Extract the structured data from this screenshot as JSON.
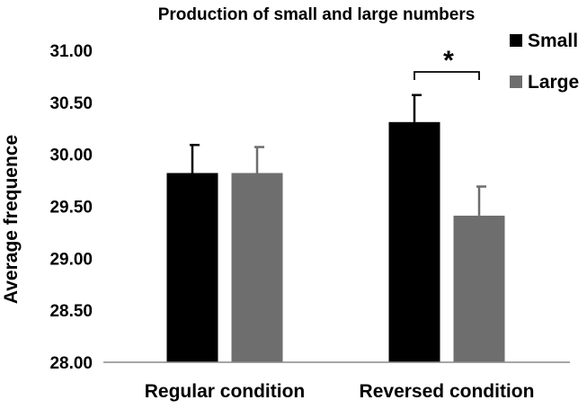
{
  "chart_data": {
    "type": "bar",
    "title": "Production of small and large numbers",
    "xlabel": "",
    "ylabel": "Average frequence",
    "ylim": [
      28.0,
      31.0
    ],
    "yticks": [
      "28.00",
      "28.50",
      "29.00",
      "29.50",
      "30.00",
      "30.50",
      "31.00"
    ],
    "categories": [
      "Regular condition",
      "Reversed condition"
    ],
    "series": [
      {
        "name": "Small",
        "color": "#000000",
        "values": [
          29.82,
          30.31
        ],
        "errors": [
          0.27,
          0.26
        ]
      },
      {
        "name": "Large",
        "color": "#6e6e6e",
        "values": [
          29.82,
          29.41
        ],
        "errors": [
          0.25,
          0.28
        ]
      }
    ],
    "annotations": [
      {
        "text": "*",
        "category": "Reversed condition",
        "between": [
          "Small",
          "Large"
        ]
      }
    ],
    "legend": "top-right",
    "grid": false
  }
}
